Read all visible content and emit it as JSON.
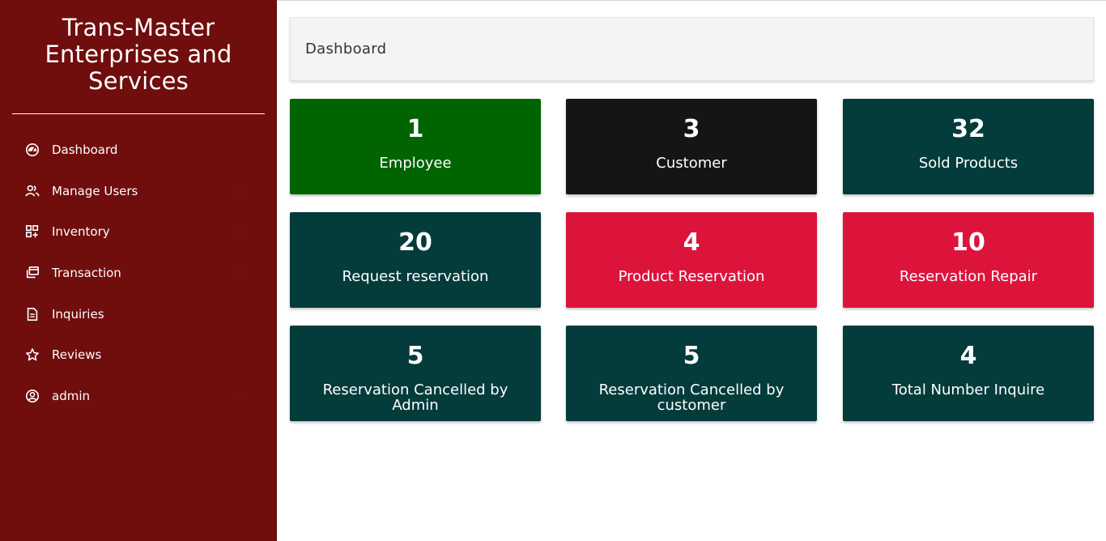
{
  "sidebar": {
    "brand": "Trans-Master Enterprises and Services",
    "items": [
      {
        "label": "Dashboard",
        "icon": "dashboard-icon",
        "has_caret": false
      },
      {
        "label": "Manage Users",
        "icon": "users-icon",
        "has_caret": true
      },
      {
        "label": "Inventory",
        "icon": "inventory-icon",
        "has_caret": true
      },
      {
        "label": "Transaction",
        "icon": "transaction-icon",
        "has_caret": true
      },
      {
        "label": "Inquiries",
        "icon": "document-icon",
        "has_caret": false
      },
      {
        "label": "Reviews",
        "icon": "star-icon",
        "has_caret": false
      },
      {
        "label": "admin",
        "icon": "user-circle-icon",
        "has_caret": true
      }
    ]
  },
  "header": {
    "title": "Dashboard"
  },
  "cards": [
    {
      "value": "1",
      "label": "Employee",
      "color": "#006400"
    },
    {
      "value": "3",
      "label": "Customer",
      "color": "#131613"
    },
    {
      "value": "32",
      "label": "Sold Products",
      "color": "#043b3b"
    },
    {
      "value": "20",
      "label": "Request reservation",
      "color": "#043b3b"
    },
    {
      "value": "4",
      "label": "Product Reservation",
      "color": "#dc143c"
    },
    {
      "value": "10",
      "label": "Reservation Repair",
      "color": "#dc143c"
    },
    {
      "value": "5",
      "label": "Reservation Cancelled by Admin",
      "color": "#043b3b"
    },
    {
      "value": "5",
      "label": "Reservation Cancelled by customer",
      "color": "#043b3b"
    },
    {
      "value": "4",
      "label": "Total Number Inquire",
      "color": "#043b3b"
    }
  ],
  "colors": {
    "sidebar_bg": "#700d0d",
    "header_bg": "#f4f4f4"
  }
}
